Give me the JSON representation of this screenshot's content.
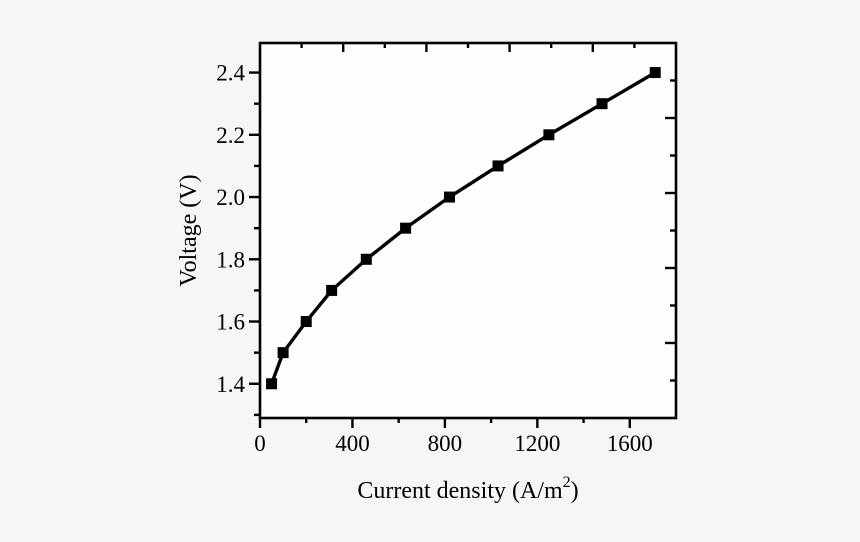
{
  "page": {
    "background": "#f5f6f6",
    "plot_background": "#fefefe",
    "ink_color": "#000000"
  },
  "chart_data": {
    "type": "line",
    "title": "",
    "xlabel": "Current density (A/m²)",
    "xlabel_parts": {
      "pre": "Current density (A/m",
      "sup": "2",
      "post": ")"
    },
    "ylabel": "Voltage (V)",
    "xlim": [
      0,
      1800
    ],
    "ylim": [
      1.29,
      2.495
    ],
    "x_ticks": [
      0,
      400,
      800,
      1200,
      1600
    ],
    "x_tick_labels": [
      "0",
      "400",
      "800",
      "1200",
      "1600"
    ],
    "x_minor_ticks": [
      200,
      600,
      1000,
      1400
    ],
    "y_ticks": [
      1.4,
      1.6,
      1.8,
      2.0,
      2.2,
      2.4
    ],
    "y_tick_labels": [
      "1.4",
      "1.6",
      "1.8",
      "2.0",
      "2.2",
      "2.4"
    ],
    "y_minor_ticks": [
      1.3,
      1.5,
      1.7,
      1.9,
      2.1,
      2.3
    ],
    "top_right_minor_fractions": [
      0.1,
      0.3,
      0.5,
      0.7,
      0.9
    ],
    "top_right_major_fractions": [
      0.2,
      0.4,
      0.6,
      0.8
    ],
    "grid": false,
    "legend": "none",
    "frame": "box",
    "series": [
      {
        "name": "voltage-vs-current-density",
        "marker": "filled-square",
        "line_style": "solid",
        "color": "#000000",
        "points": [
          [
            50,
            1.4
          ],
          [
            100,
            1.5
          ],
          [
            200,
            1.6
          ],
          [
            310,
            1.7
          ],
          [
            460,
            1.8
          ],
          [
            630,
            1.9
          ],
          [
            820,
            2.0
          ],
          [
            1030,
            2.1
          ],
          [
            1250,
            2.2
          ],
          [
            1480,
            2.3
          ],
          [
            1710,
            2.4
          ]
        ]
      }
    ]
  }
}
